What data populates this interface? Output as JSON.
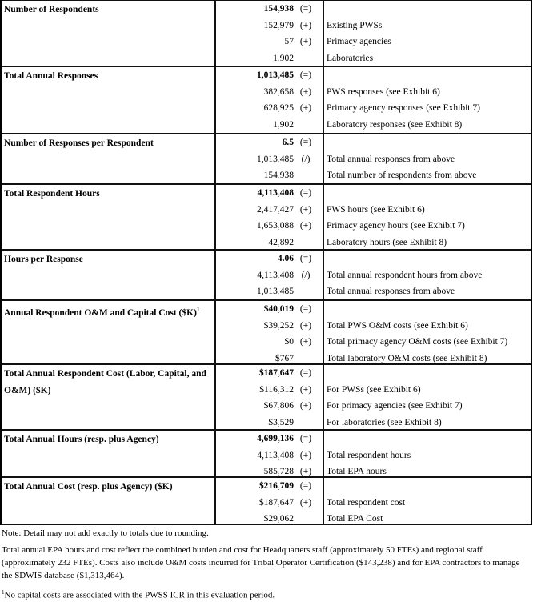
{
  "sections": [
    {
      "label": "Number of Respondents",
      "height": 84,
      "rows": [
        {
          "value": "154,938",
          "op": "(=)",
          "desc": ""
        },
        {
          "value": "152,979",
          "op": "(+)",
          "desc": "Existing PWSs"
        },
        {
          "value": "57",
          "op": "(+)",
          "desc": "Primacy agencies"
        },
        {
          "value": "1,902",
          "op": "",
          "desc": "Laboratories"
        }
      ]
    },
    {
      "label": "Total Annual Responses",
      "height": 84,
      "rows": [
        {
          "value": "1,013,485",
          "op": "(=)",
          "desc": ""
        },
        {
          "value": "382,658",
          "op": "(+)",
          "desc": "PWS responses (see Exhibit 6)"
        },
        {
          "value": "628,925",
          "op": "(+)",
          "desc": "Primacy agency responses (see Exhibit 7)"
        },
        {
          "value": "1,902",
          "op": "",
          "desc": "Laboratory responses (see Exhibit 8)"
        }
      ]
    },
    {
      "label": "Number of Responses per Respondent",
      "height": 63,
      "rows": [
        {
          "value": "6.5",
          "op": "(=)",
          "desc": ""
        },
        {
          "value": "1,013,485",
          "op": "(/)",
          "desc": "Total annual responses from above"
        },
        {
          "value": "154,938",
          "op": "",
          "desc": "Total number of respondents from above"
        }
      ]
    },
    {
      "label": "Total Respondent Hours",
      "height": 82,
      "rows": [
        {
          "value": "4,113,408",
          "op": "(=)",
          "desc": ""
        },
        {
          "value": "2,417,427",
          "op": "(+)",
          "desc": "PWS hours (see Exhibit 6)"
        },
        {
          "value": "1,653,088",
          "op": "(+)",
          "desc": "Primacy agency hours (see Exhibit 7)"
        },
        {
          "value": "42,892",
          "op": "",
          "desc": "Laboratory hours (see Exhibit 8)"
        }
      ]
    },
    {
      "label": "Hours per Response",
      "height": 63,
      "rows": [
        {
          "value": "4.06",
          "op": "(=)",
          "desc": ""
        },
        {
          "value": "4,113,408",
          "op": "(/)",
          "desc": "Total annual respondent hours from above"
        },
        {
          "value": "1,013,485",
          "op": "",
          "desc": "Total annual responses from above"
        }
      ]
    },
    {
      "label": "Annual Respondent O&M and Capital Cost ($K)",
      "sup": "1",
      "height": 80,
      "rows": [
        {
          "value": "$40,019",
          "op": "(=)",
          "desc": ""
        },
        {
          "value": "$39,252",
          "op": "(+)",
          "desc": "Total PWS O&M costs (see Exhibit 6)"
        },
        {
          "value": "$0",
          "op": "(+)",
          "desc": "Total primacy agency O&M costs (see Exhibit 7)"
        },
        {
          "value": "$767",
          "op": "",
          "desc": "Total laboratory O&M costs (see Exhibit 8)"
        }
      ]
    },
    {
      "label": "Total Annual Respondent Cost (Labor, Capital, and O&M) ($K)",
      "height": 82,
      "rows": [
        {
          "value": "$187,647",
          "op": "(=)",
          "desc": ""
        },
        {
          "value": "$116,312",
          "op": "(+)",
          "desc": "For PWSs (see Exhibit 6)"
        },
        {
          "value": "$67,806",
          "op": "(+)",
          "desc": "For primacy agencies (see Exhibit 7)"
        },
        {
          "value": "$3,529",
          "op": "",
          "desc": "For laboratories (see Exhibit 8)"
        }
      ]
    },
    {
      "label": "Total Annual Hours (resp. plus Agency)",
      "height": 59,
      "rows": [
        {
          "value": "4,699,136",
          "op": "(=)",
          "desc": ""
        },
        {
          "value": "4,113,408",
          "op": "(+)",
          "desc": "Total respondent hours"
        },
        {
          "value": "585,728",
          "op": "(+)",
          "desc": "Total EPA hours"
        }
      ]
    },
    {
      "label": "Total Annual Cost (resp. plus Agency) ($K)",
      "height": 59,
      "rows": [
        {
          "value": "$216,709",
          "op": "(=)",
          "desc": ""
        },
        {
          "value": "$187,647",
          "op": "(+)",
          "desc": "Total respondent cost"
        },
        {
          "value": "$29,062",
          "op": "",
          "desc": "Total EPA Cost"
        }
      ]
    }
  ],
  "notes": {
    "rounding": "Note: Detail may not add exactly to totals due to rounding.",
    "epa": "Total annual EPA hours and cost reflect the combined burden and cost for Headquarters staff (approximately 50 FTEs) and regional staff (approximately 232 FTEs). Costs also include O&M costs incurred for Tribal Operator Certification ($143,238) and for EPA contractors to manage the SDWIS database ($1,313,464).",
    "footnote_mark": "1",
    "footnote": "No capital costs are associated with the PWSS ICR in this evaluation period."
  }
}
